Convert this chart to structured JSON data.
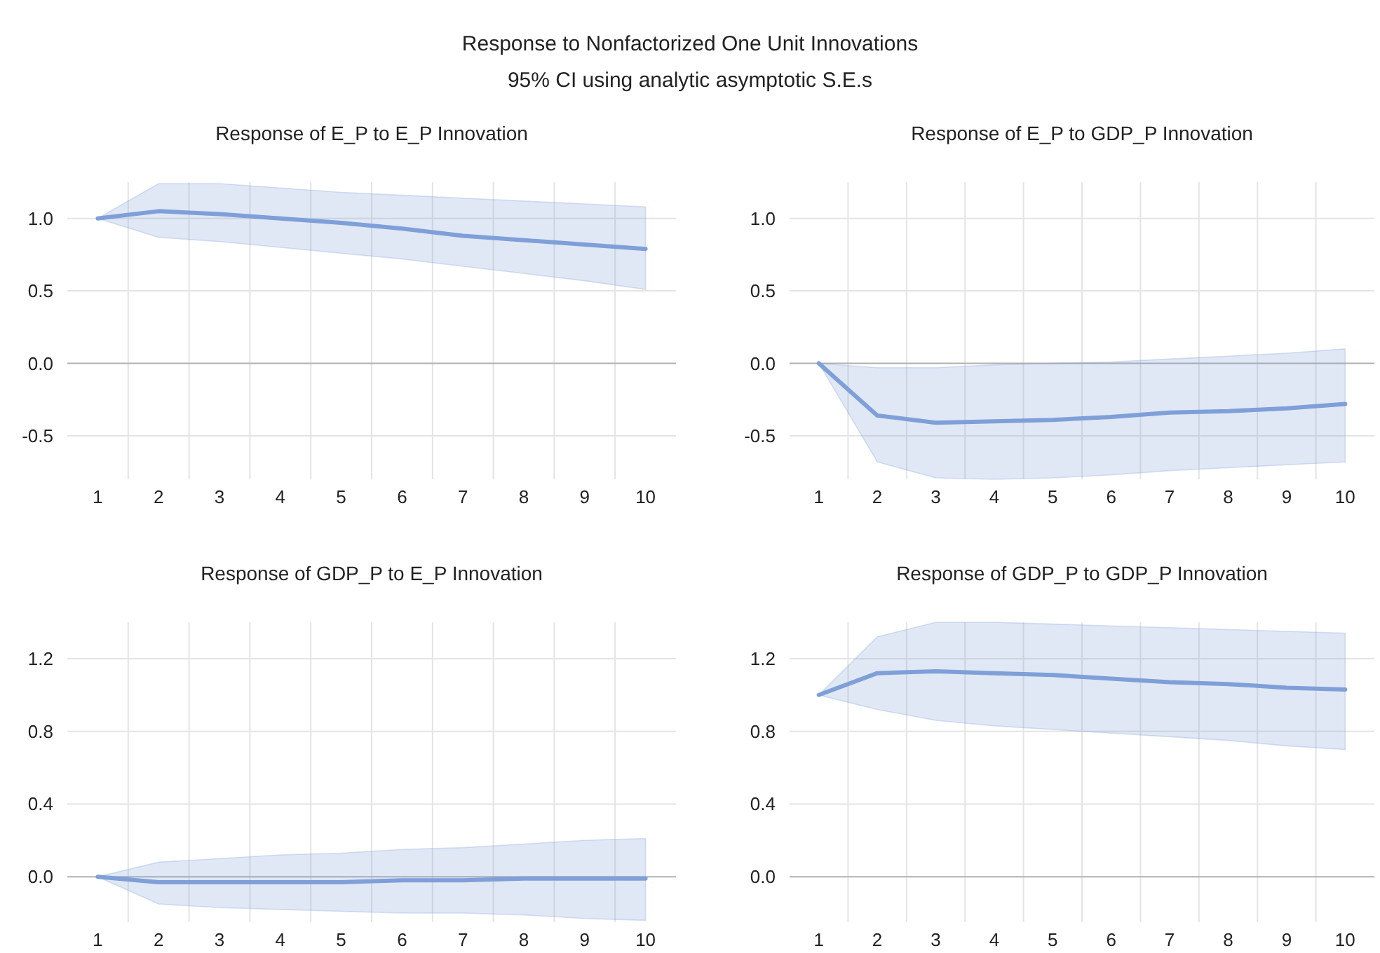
{
  "chart_data": [
    {
      "type": "other",
      "title": "Response to Nonfactorized One Unit Innovations",
      "subtitle": "95% CI using analytic asymptotic S.E.s"
    },
    {
      "type": "line",
      "title": "Response of E_P to E_P Innovation",
      "categories": [
        "1",
        "2",
        "3",
        "4",
        "5",
        "6",
        "7",
        "8",
        "9",
        "10"
      ],
      "ylim": [
        -0.8,
        1.25
      ],
      "yticks": [
        {
          "value": -0.5,
          "label": "-0.5"
        },
        {
          "value": 0,
          "label": "0.0"
        },
        {
          "value": 0.5,
          "label": "0.5"
        },
        {
          "value": 1,
          "label": "1.0"
        }
      ],
      "grid": true,
      "series": [
        {
          "color": "#7f9fd8",
          "values": [
            1.0,
            1.05,
            1.03,
            1.0,
            0.97,
            0.93,
            0.88,
            0.85,
            0.82,
            0.79
          ],
          "lower": [
            1.0,
            0.87,
            0.84,
            0.8,
            0.76,
            0.72,
            0.67,
            0.62,
            0.57,
            0.51
          ],
          "upper": [
            1.0,
            1.24,
            1.24,
            1.21,
            1.18,
            1.16,
            1.14,
            1.12,
            1.1,
            1.08
          ]
        }
      ]
    },
    {
      "type": "line",
      "title": "Response of E_P to GDP_P Innovation",
      "categories": [
        "1",
        "2",
        "3",
        "4",
        "5",
        "6",
        "7",
        "8",
        "9",
        "10"
      ],
      "ylim": [
        -0.8,
        1.25
      ],
      "yticks": [
        {
          "value": -0.5,
          "label": "-0.5"
        },
        {
          "value": 0,
          "label": "0.0"
        },
        {
          "value": 0.5,
          "label": "0.5"
        },
        {
          "value": 1,
          "label": "1.0"
        }
      ],
      "grid": true,
      "series": [
        {
          "color": "#7f9fd8",
          "values": [
            0,
            -0.36,
            -0.41,
            -0.4,
            -0.39,
            -0.37,
            -0.34,
            -0.33,
            -0.31,
            -0.28
          ],
          "lower": [
            0,
            -0.68,
            -0.79,
            -0.8,
            -0.79,
            -0.77,
            -0.74,
            -0.72,
            -0.7,
            -0.68
          ],
          "upper": [
            0,
            -0.03,
            -0.03,
            -0.01,
            0.0,
            0.01,
            0.03,
            0.05,
            0.07,
            0.1
          ]
        }
      ]
    },
    {
      "type": "line",
      "title": "Response of GDP_P to E_P Innovation",
      "categories": [
        "1",
        "2",
        "3",
        "4",
        "5",
        "6",
        "7",
        "8",
        "9",
        "10"
      ],
      "ylim": [
        -0.25,
        1.4
      ],
      "yticks": [
        {
          "value": 0,
          "label": "0.0"
        },
        0.4,
        0.8,
        1.2
      ],
      "grid": true,
      "series": [
        {
          "color": "#7f9fd8",
          "values": [
            0,
            -0.03,
            -0.03,
            -0.03,
            -0.03,
            -0.02,
            -0.02,
            -0.01,
            -0.01,
            -0.01
          ],
          "lower": [
            0,
            -0.15,
            -0.17,
            -0.18,
            -0.19,
            -0.2,
            -0.2,
            -0.21,
            -0.23,
            -0.24
          ],
          "upper": [
            0,
            0.08,
            0.1,
            0.12,
            0.13,
            0.15,
            0.16,
            0.18,
            0.2,
            0.21
          ]
        }
      ]
    },
    {
      "type": "line",
      "title": "Response of GDP_P to GDP_P Innovation",
      "categories": [
        "1",
        "2",
        "3",
        "4",
        "5",
        "6",
        "7",
        "8",
        "9",
        "10"
      ],
      "ylim": [
        -0.25,
        1.4
      ],
      "yticks": [
        {
          "value": 0,
          "label": "0.0"
        },
        0.4,
        0.8,
        1.2
      ],
      "grid": true,
      "series": [
        {
          "color": "#7f9fd8",
          "values": [
            1.0,
            1.12,
            1.13,
            1.12,
            1.11,
            1.09,
            1.07,
            1.06,
            1.04,
            1.03
          ],
          "lower": [
            1.0,
            0.92,
            0.86,
            0.83,
            0.81,
            0.79,
            0.77,
            0.75,
            0.72,
            0.7
          ],
          "upper": [
            1.0,
            1.32,
            1.4,
            1.4,
            1.39,
            1.38,
            1.37,
            1.36,
            1.35,
            1.34
          ]
        }
      ]
    }
  ]
}
